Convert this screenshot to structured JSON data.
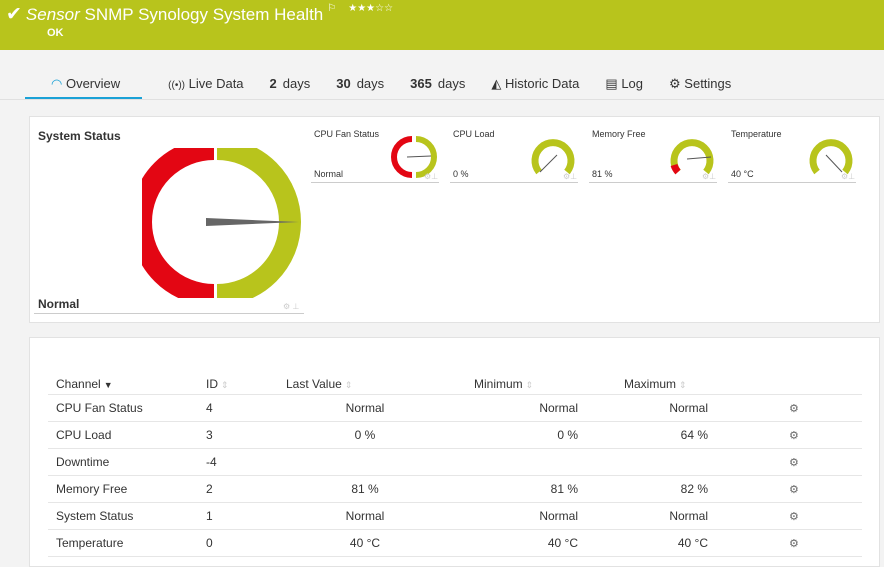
{
  "header": {
    "prefix": "Sensor",
    "title": "SNMP Synology System Health",
    "status": "OK",
    "priority_stars": 3,
    "stars_text": "★★★☆☆",
    "flag": "⚐",
    "accent": "#b8c41c"
  },
  "tabs": [
    {
      "label": "Overview"
    },
    {
      "label": "Live Data"
    },
    {
      "num": "2",
      "label": "days"
    },
    {
      "num": "30",
      "label": "days"
    },
    {
      "num": "365",
      "label": "days"
    },
    {
      "label": "Historic Data"
    },
    {
      "label": "Log"
    },
    {
      "label": "Settings"
    }
  ],
  "system_status": {
    "title": "System Status",
    "value": "Normal"
  },
  "gauges": [
    {
      "label": "CPU Fan Status",
      "value": "Normal"
    },
    {
      "label": "CPU Load",
      "value": "0 %"
    },
    {
      "label": "Memory Free",
      "value": "81 %"
    },
    {
      "label": "Temperature",
      "value": "40 °C"
    }
  ],
  "table": {
    "headers": [
      "Channel",
      "ID",
      "Last Value",
      "Minimum",
      "Maximum"
    ],
    "rows": [
      {
        "channel": "CPU Fan Status",
        "id": "4",
        "last": "Normal",
        "min": "Normal",
        "max": "Normal"
      },
      {
        "channel": "CPU Load",
        "id": "3",
        "last": "0 %",
        "min": "0 %",
        "max": "64 %"
      },
      {
        "channel": "Downtime",
        "id": "-4",
        "last": "",
        "min": "",
        "max": ""
      },
      {
        "channel": "Memory Free",
        "id": "2",
        "last": "81 %",
        "min": "81 %",
        "max": "82 %"
      },
      {
        "channel": "System Status",
        "id": "1",
        "last": "Normal",
        "min": "Normal",
        "max": "Normal"
      },
      {
        "channel": "Temperature",
        "id": "0",
        "last": "40 °C",
        "min": "40 °C",
        "max": "40 °C"
      }
    ]
  }
}
